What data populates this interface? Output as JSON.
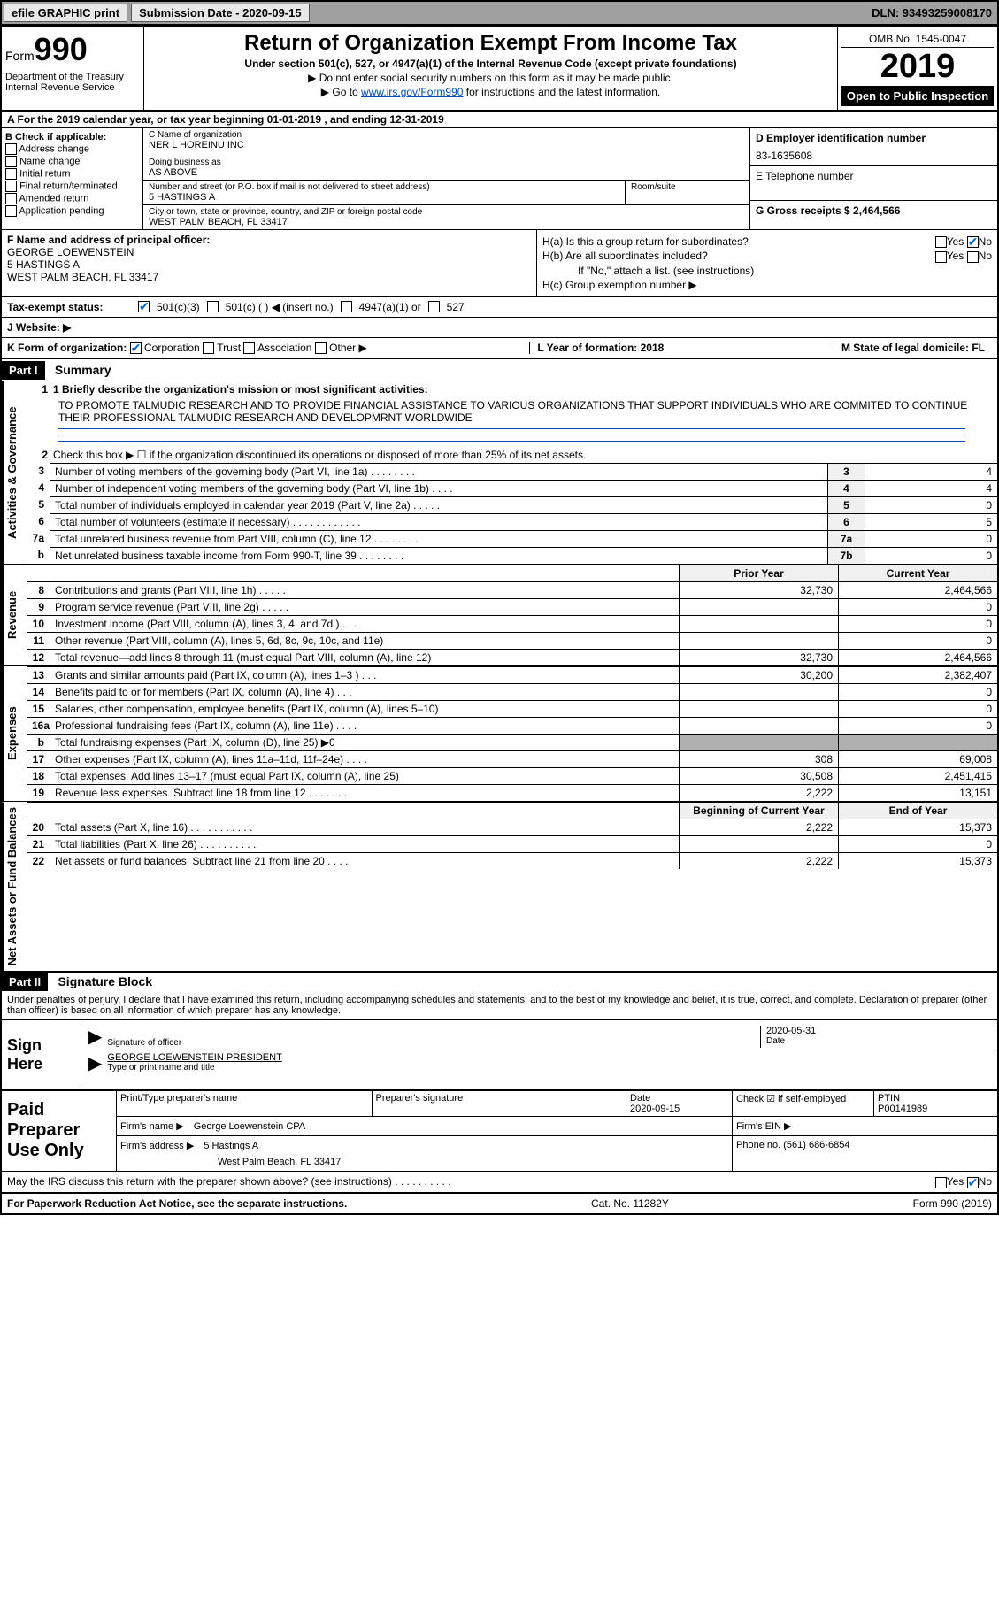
{
  "topbar": {
    "efile": "efile GRAPHIC print",
    "submission_label": "Submission Date - 2020-09-15",
    "dln": "DLN: 93493259008170"
  },
  "header": {
    "form_label": "Form",
    "form_number": "990",
    "dept": "Department of the Treasury\nInternal Revenue Service",
    "title": "Return of Organization Exempt From Income Tax",
    "subtitle": "Under section 501(c), 527, or 4947(a)(1) of the Internal Revenue Code (except private foundations)",
    "warn1": "▶ Do not enter social security numbers on this form as it may be made public.",
    "warn2_pre": "▶ Go to ",
    "warn2_link": "www.irs.gov/Form990",
    "warn2_post": " for instructions and the latest information.",
    "omb": "OMB No. 1545-0047",
    "year": "2019",
    "open": "Open to Public Inspection"
  },
  "period": {
    "line": "A For the 2019 calendar year, or tax year beginning 01-01-2019    , and ending 12-31-2019"
  },
  "checkboxes": {
    "label": "B Check if applicable:",
    "items": [
      "Address change",
      "Name change",
      "Initial return",
      "Final return/terminated",
      "Amended return",
      "Application pending"
    ]
  },
  "entity": {
    "name_label": "C Name of organization",
    "name": "NER L HOREINU INC",
    "dba_label": "Doing business as",
    "dba": "AS ABOVE",
    "addr_label": "Number and street (or P.O. box if mail is not delivered to street address)",
    "addr": "5 HASTINGS A",
    "room_label": "Room/suite",
    "city_label": "City or town, state or province, country, and ZIP or foreign postal code",
    "city": "WEST PALM BEACH, FL  33417"
  },
  "right_col": {
    "ein_label": "D Employer identification number",
    "ein": "83-1635608",
    "tel_label": "E Telephone number",
    "gross_label": "G Gross receipts $ 2,464,566"
  },
  "officer": {
    "label": "F  Name and address of principal officer:",
    "name": "GEORGE LOEWENSTEIN",
    "addr1": "5 HASTINGS A",
    "addr2": "WEST PALM BEACH, FL  33417"
  },
  "h_block": {
    "ha": "H(a)  Is this a group return for subordinates?",
    "hb": "H(b)  Are all subordinates included?",
    "hb_note": "If \"No,\" attach a list. (see instructions)",
    "hc": "H(c)  Group exemption number ▶",
    "yes": "Yes",
    "no": "No"
  },
  "tax_status": {
    "label": "Tax-exempt status:",
    "o1": "501(c)(3)",
    "o2": "501(c) (  ) ◀ (insert no.)",
    "o3": "4947(a)(1) or",
    "o4": "527"
  },
  "website": {
    "label": "J    Website: ▶"
  },
  "k_row": {
    "label": "K Form of organization:",
    "o1": "Corporation",
    "o2": "Trust",
    "o3": "Association",
    "o4": "Other ▶",
    "l": "L Year of formation: 2018",
    "m": "M State of legal domicile: FL"
  },
  "part1": {
    "hdr": "Part I",
    "title": "Summary",
    "line1_label": "1   Briefly describe the organization's mission or most significant activities:",
    "mission": "TO PROMOTE TALMUDIC RESEARCH AND TO PROVIDE FINANCIAL ASSISTANCE TO VARIOUS ORGANIZATIONS THAT SUPPORT INDIVIDUALS WHO ARE COMMITED TO CONTINUE THEIR PROFESSIONAL TALMUDIC RESEARCH AND DEVELOPMRNT WORLDWIDE",
    "line2": "Check this box ▶ ☐  if the organization discontinued its operations or disposed of more than 25% of its net assets.",
    "governance_label": "Activities & Governance",
    "revenue_label": "Revenue",
    "expenses_label": "Expenses",
    "netassets_label": "Net Assets or Fund Balances",
    "rows_gov": [
      {
        "n": "3",
        "d": "Number of voting members of the governing body (Part VI, line 1a)   .    .    .    .    .    .    .    .",
        "box": "3",
        "v": "4"
      },
      {
        "n": "4",
        "d": "Number of independent voting members of the governing body (Part VI, line 1b)   .    .    .    .",
        "box": "4",
        "v": "4"
      },
      {
        "n": "5",
        "d": "Total number of individuals employed in calendar year 2019 (Part V, line 2a)   .    .    .    .    .",
        "box": "5",
        "v": "0"
      },
      {
        "n": "6",
        "d": "Total number of volunteers (estimate if necessary)    .    .    .    .    .    .    .    .    .    .    .    .",
        "box": "6",
        "v": "5"
      },
      {
        "n": "7a",
        "d": "Total unrelated business revenue from Part VIII, column (C), line 12   .    .    .    .    .    .    .    .",
        "box": "7a",
        "v": "0"
      },
      {
        "n": "b",
        "d": "Net unrelated business taxable income from Form 990-T, line 39   .    .    .    .    .    .    .    .",
        "box": "7b",
        "v": "0"
      }
    ],
    "fin_hdr_prior": "Prior Year",
    "fin_hdr_current": "Current Year",
    "rows_rev": [
      {
        "n": "8",
        "d": "Contributions and grants (Part VIII, line 1h)    .    .    .    .    .",
        "p": "32,730",
        "c": "2,464,566"
      },
      {
        "n": "9",
        "d": "Program service revenue (Part VIII, line 2g)    .    .    .    .    .",
        "p": "",
        "c": "0"
      },
      {
        "n": "10",
        "d": "Investment income (Part VIII, column (A), lines 3, 4, and 7d )   .    .    .",
        "p": "",
        "c": "0"
      },
      {
        "n": "11",
        "d": "Other revenue (Part VIII, column (A), lines 5, 6d, 8c, 9c, 10c, and 11e)",
        "p": "",
        "c": "0"
      },
      {
        "n": "12",
        "d": "Total revenue—add lines 8 through 11 (must equal Part VIII, column (A), line 12)",
        "p": "32,730",
        "c": "2,464,566"
      }
    ],
    "rows_exp": [
      {
        "n": "13",
        "d": "Grants and similar amounts paid (Part IX, column (A), lines 1–3 )   .    .    .",
        "p": "30,200",
        "c": "2,382,407"
      },
      {
        "n": "14",
        "d": "Benefits paid to or for members (Part IX, column (A), line 4)    .    .    .",
        "p": "",
        "c": "0"
      },
      {
        "n": "15",
        "d": "Salaries, other compensation, employee benefits (Part IX, column (A), lines 5–10)",
        "p": "",
        "c": "0"
      },
      {
        "n": "16a",
        "d": "Professional fundraising fees (Part IX, column (A), line 11e)    .    .    .    .",
        "p": "",
        "c": "0"
      },
      {
        "n": "b",
        "d": "Total fundraising expenses (Part IX, column (D), line 25) ▶0",
        "p": "SHADED",
        "c": "SHADED"
      },
      {
        "n": "17",
        "d": "Other expenses (Part IX, column (A), lines 11a–11d, 11f–24e)    .    .    .    .",
        "p": "308",
        "c": "69,008"
      },
      {
        "n": "18",
        "d": "Total expenses. Add lines 13–17 (must equal Part IX, column (A), line 25)",
        "p": "30,508",
        "c": "2,451,415"
      },
      {
        "n": "19",
        "d": "Revenue less expenses. Subtract line 18 from line 12   .    .    .    .    .    .    .",
        "p": "2,222",
        "c": "13,151"
      }
    ],
    "na_hdr_begin": "Beginning of Current Year",
    "na_hdr_end": "End of Year",
    "rows_na": [
      {
        "n": "20",
        "d": "Total assets (Part X, line 16)   .    .    .    .    .    .    .    .    .    .    .",
        "p": "2,222",
        "c": "15,373"
      },
      {
        "n": "21",
        "d": "Total liabilities (Part X, line 26)   .    .    .    .    .    .    .    .    .    .",
        "p": "",
        "c": "0"
      },
      {
        "n": "22",
        "d": "Net assets or fund balances. Subtract line 21 from line 20    .    .    .    .",
        "p": "2,222",
        "c": "15,373"
      }
    ]
  },
  "part2": {
    "hdr": "Part II",
    "title": "Signature Block",
    "perjury": "Under penalties of perjury, I declare that I have examined this return, including accompanying schedules and statements, and to the best of my knowledge and belief, it is true, correct, and complete. Declaration of preparer (other than officer) is based on all information of which preparer has any knowledge.",
    "sign_here": "Sign Here",
    "sig_officer": "Signature of officer",
    "sig_date": "2020-05-31",
    "date_lab": "Date",
    "name_title": "GEORGE LOEWENSTEIN PRESIDENT",
    "type_lab": "Type or print name and title",
    "paid": "Paid Preparer Use Only",
    "p_name_lab": "Print/Type preparer's name",
    "p_sig_lab": "Preparer's signature",
    "p_date_lab": "Date",
    "p_date": "2020-09-15",
    "p_check": "Check ☑ if self-employed",
    "p_ptin_lab": "PTIN",
    "p_ptin": "P00141989",
    "firm_name_lab": "Firm's name    ▶",
    "firm_name": "George Loewenstein CPA",
    "firm_ein_lab": "Firm's EIN ▶",
    "firm_addr_lab": "Firm's address ▶",
    "firm_addr1": "5 Hastings A",
    "firm_addr2": "West Palm Beach, FL  33417",
    "phone_lab": "Phone no. (561) 686-6854",
    "discuss": "May the IRS discuss this return with the preparer shown above? (see instructions)   .    .    .    .    .    .    .    .    .    .",
    "discuss_yes": "Yes",
    "discuss_no": "No"
  },
  "footer": {
    "pra": "For Paperwork Reduction Act Notice, see the separate instructions.",
    "cat": "Cat. No. 11282Y",
    "form": "Form 990 (2019)"
  },
  "colors": {
    "link_blue": "#004DB8",
    "check_blue": "#0066cc",
    "header_gray": "#a0a0a0",
    "shade_gray": "#b0b0b0",
    "light_gray": "#f0f0f0"
  }
}
